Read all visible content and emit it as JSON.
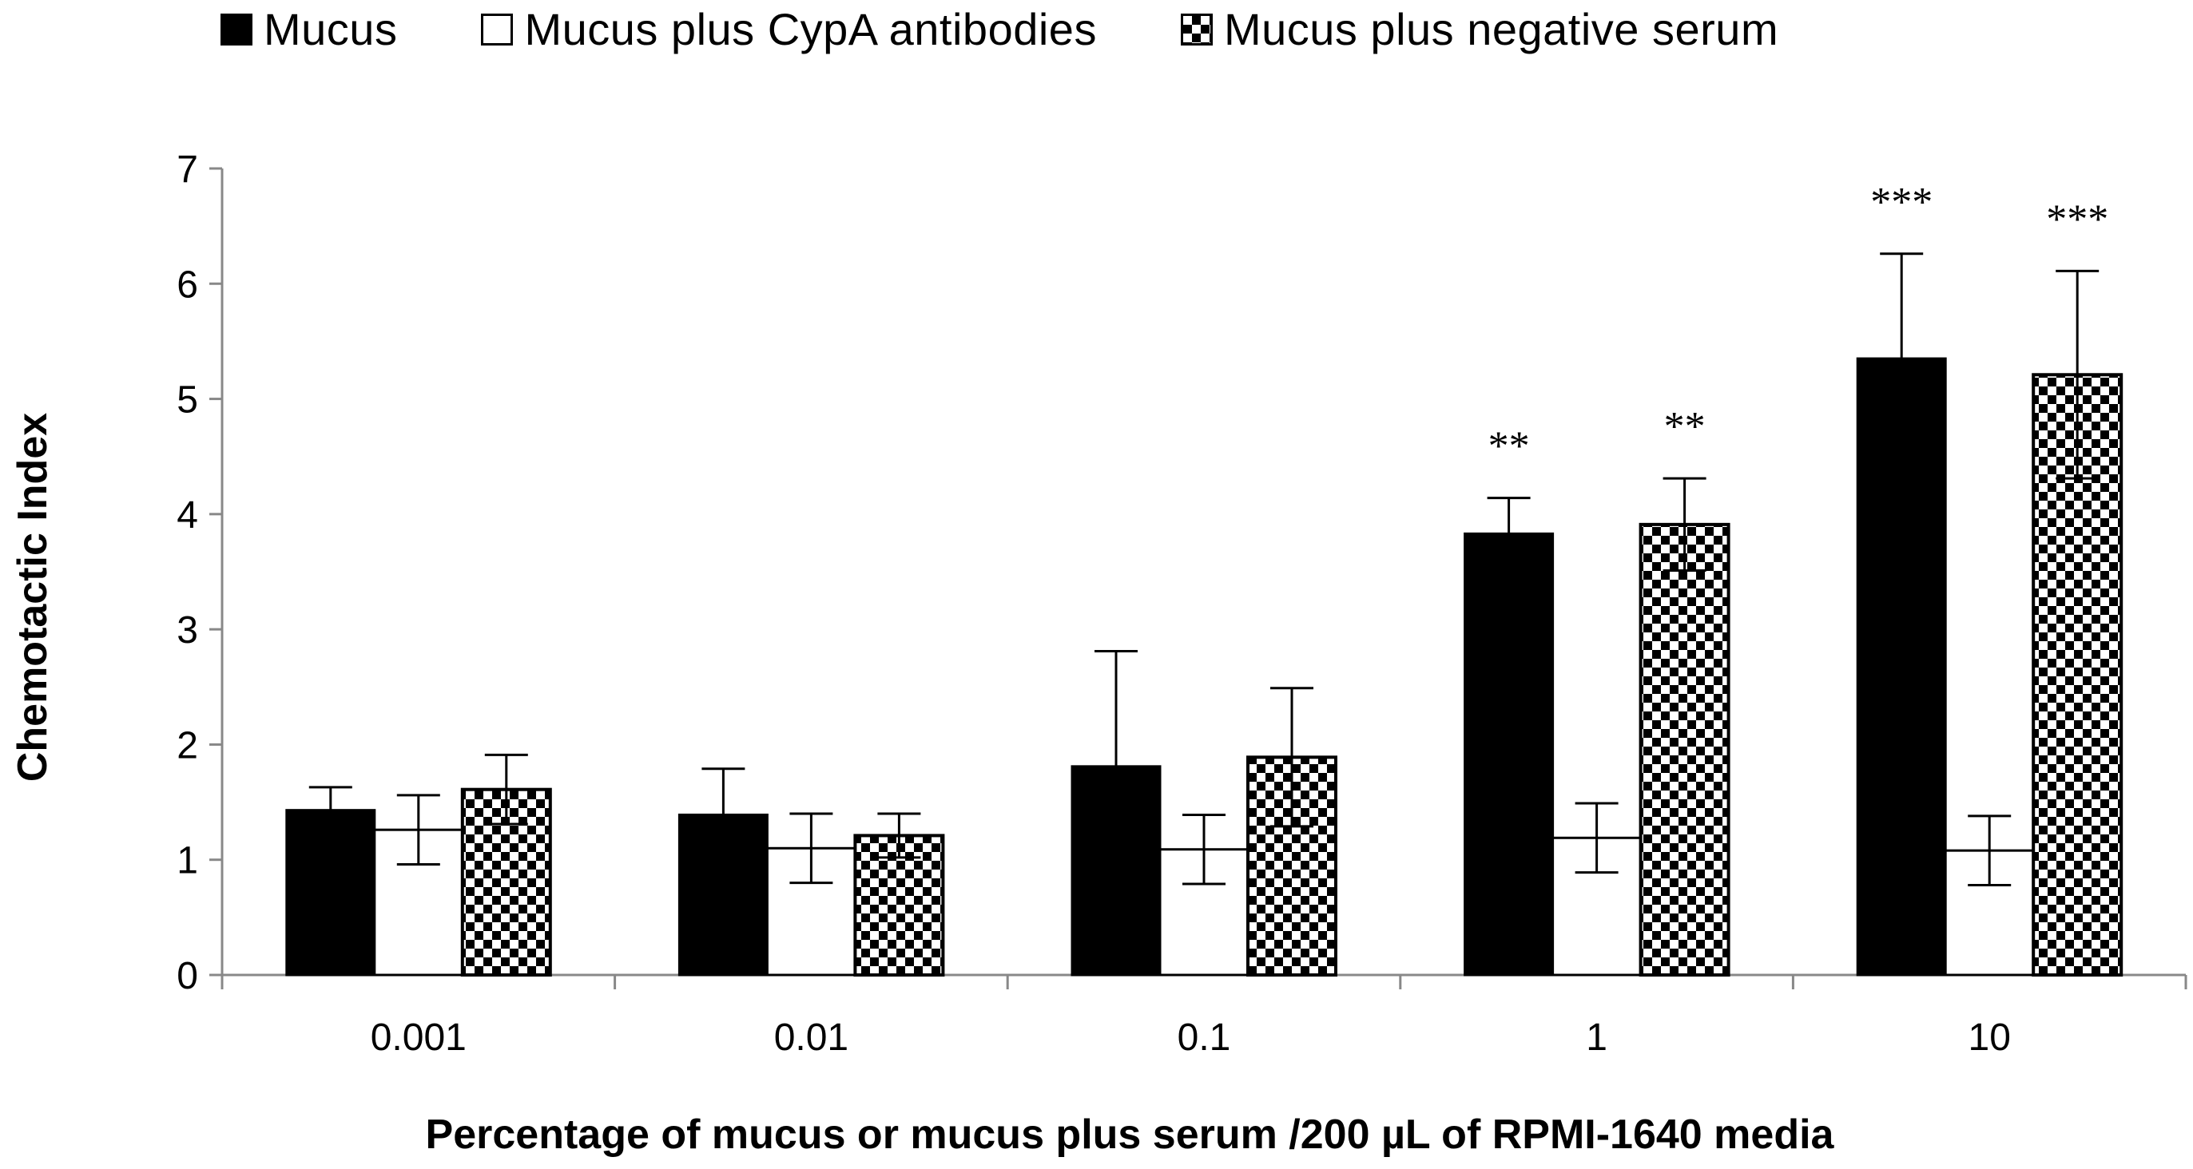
{
  "chart_data": {
    "type": "bar",
    "title": "",
    "xlabel": "Percentage of mucus or mucus plus serum /200 µL of RPMI-1640 media",
    "ylabel": "Chemotactic Index",
    "ylim": [
      0,
      7
    ],
    "yticks": [
      "0",
      "1",
      "2",
      "3",
      "4",
      "5",
      "6",
      "7"
    ],
    "categories": [
      "0.001",
      "0.01",
      "0.1",
      "1",
      "10"
    ],
    "grid": false,
    "legend_position": "top",
    "series": [
      {
        "name": "Mucus",
        "fill": "solid",
        "color": "#000000",
        "values": [
          1.43,
          1.39,
          1.81,
          3.83,
          5.35
        ],
        "errors": [
          0.2,
          0.4,
          1.0,
          0.31,
          0.91
        ],
        "annotations": [
          "",
          "",
          "",
          "**",
          "***"
        ]
      },
      {
        "name": "Mucus plus CypA antibodies",
        "fill": "white",
        "color": "#ffffff",
        "values": [
          1.26,
          1.1,
          1.09,
          1.19,
          1.08
        ],
        "errors": [
          0.3,
          0.3,
          0.3,
          0.3,
          0.3
        ],
        "annotations": [
          "",
          "",
          "",
          "",
          ""
        ]
      },
      {
        "name": "Mucus plus negative serum",
        "fill": "checkered",
        "color": "#000000",
        "values": [
          1.61,
          1.21,
          1.89,
          3.91,
          5.21
        ],
        "errors": [
          0.3,
          0.19,
          0.6,
          0.4,
          0.9
        ],
        "annotations": [
          "",
          "",
          "",
          "**",
          "***"
        ]
      }
    ]
  }
}
